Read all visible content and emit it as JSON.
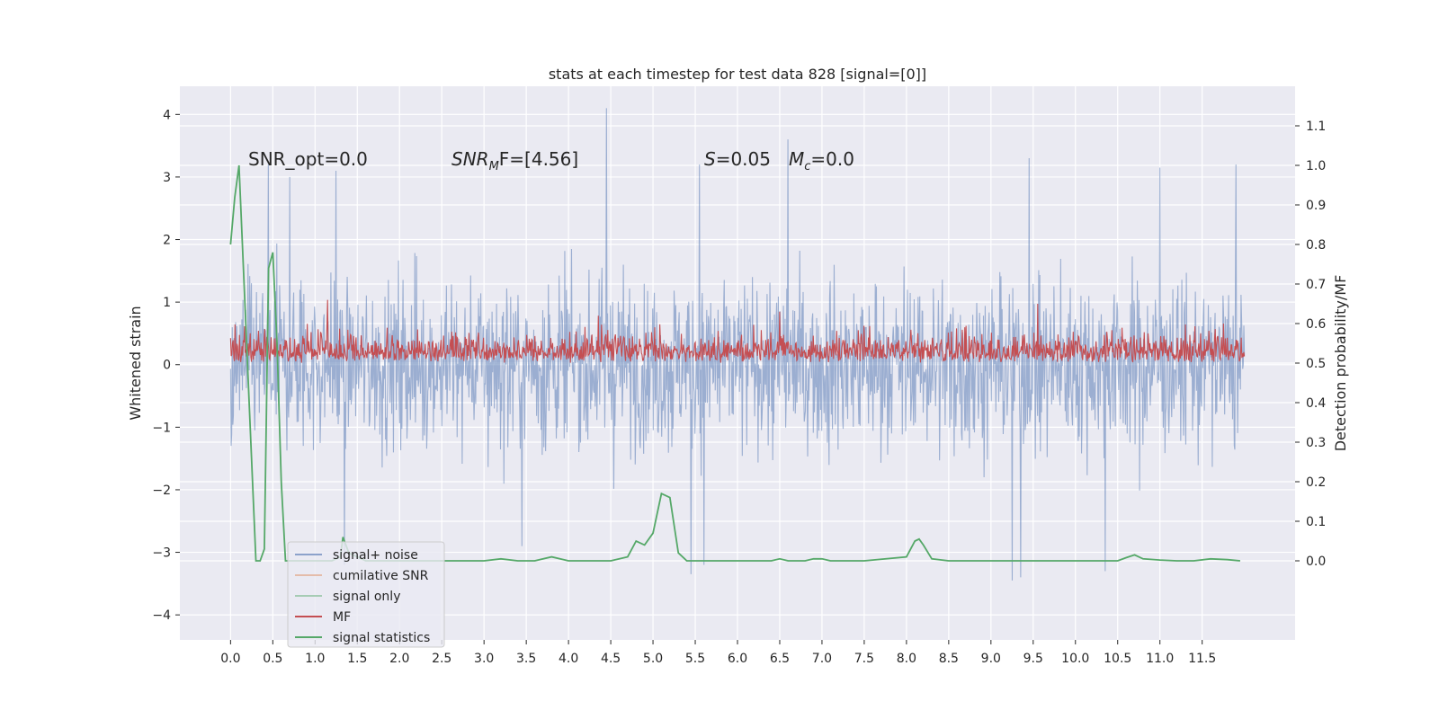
{
  "chart_data": {
    "type": "line",
    "title": "stats at each timestep for test data 828 [signal=[0]]",
    "ylabel": "Whitened strain",
    "ylabel_right": "Detection probability/MF",
    "xlim": [
      -0.6,
      12.6
    ],
    "ylim": [
      -4.4,
      4.45
    ],
    "ylim_right": [
      -0.2,
      1.2
    ],
    "xticks": [
      0.0,
      0.5,
      1.0,
      1.5,
      2.0,
      2.5,
      3.0,
      3.5,
      4.0,
      4.5,
      5.0,
      5.5,
      6.0,
      6.5,
      7.0,
      7.5,
      8.0,
      8.5,
      9.0,
      9.5,
      10.0,
      10.5,
      11.0,
      11.5
    ],
    "xtick_labels": [
      "0.0",
      "0.5",
      "1.0",
      "1.5",
      "2.0",
      "2.5",
      "3.0",
      "3.5",
      "4.0",
      "4.5",
      "5.0",
      "5.5",
      "6.0",
      "6.5",
      "7.0",
      "7.5",
      "8.0",
      "8.5",
      "9.0",
      "9.5",
      "10.0",
      "10.5",
      "11.0",
      "11.5"
    ],
    "yticks": [
      4,
      3,
      2,
      1,
      0,
      -1,
      -2,
      -3,
      -4
    ],
    "ytick_labels": [
      "4",
      "3",
      "2",
      "1",
      "0",
      "−1",
      "−2",
      "−3",
      "−4"
    ],
    "yticks_right": [
      1.1,
      1.0,
      0.9,
      0.8,
      0.7,
      0.6,
      0.5,
      0.4,
      0.3,
      0.2,
      0.1,
      0.0
    ],
    "ytick_right_labels": [
      "1.1",
      "1.0",
      "0.9",
      "0.8",
      "0.7",
      "0.6",
      "0.5",
      "0.4",
      "0.3",
      "0.2",
      "0.1",
      "0.0"
    ],
    "grid": true,
    "legend_position": "lower-left",
    "annotations": {
      "snr_opt": "SNR_opt=0.0",
      "snr_mf_main": "SNR",
      "snr_mf_sub": "M",
      "snr_mf_after": "F=[4.56]",
      "s_var": "S",
      "s_value": "=0.05",
      "mc_var": "M",
      "mc_sub": "c",
      "mc_value": "=0.0"
    },
    "series": [
      {
        "name": "signal+ noise",
        "color": "#4c72b0",
        "axis": "left",
        "style": "dense noise band",
        "x_range": [
          0.0,
          12.0
        ],
        "envelope_upper": 2.0,
        "envelope_lower": -2.0,
        "peaks": [
          {
            "x": 0.45,
            "y": 3.2
          },
          {
            "x": 0.7,
            "y": 3.0
          },
          {
            "x": 1.25,
            "y": 3.1
          },
          {
            "x": 4.45,
            "y": 4.1
          },
          {
            "x": 5.55,
            "y": 3.2
          },
          {
            "x": 6.6,
            "y": 3.6
          },
          {
            "x": 9.25,
            "y": 3.25
          },
          {
            "x": 9.45,
            "y": 3.3
          },
          {
            "x": 11.0,
            "y": 3.15
          },
          {
            "x": 11.9,
            "y": 3.2
          }
        ],
        "troughs": [
          {
            "x": 1.35,
            "y": -3.2
          },
          {
            "x": 3.45,
            "y": -2.9
          },
          {
            "x": 5.45,
            "y": -3.35
          },
          {
            "x": 5.6,
            "y": -3.2
          },
          {
            "x": 9.25,
            "y": -3.45
          },
          {
            "x": 9.35,
            "y": -3.4
          },
          {
            "x": 10.35,
            "y": -3.3
          }
        ]
      },
      {
        "name": "cumilative SNR",
        "color": "#dd8452",
        "axis": "left",
        "x": [],
        "y": []
      },
      {
        "name": "signal only",
        "color": "#55a868",
        "axis": "left",
        "x": [],
        "y": []
      },
      {
        "name": "MF",
        "color": "#c44e52",
        "axis": "right",
        "style": "dense noise band",
        "x_range": [
          0.0,
          12.0
        ],
        "baseline": 0.5,
        "envelope_upper": 0.58,
        "peaks": [
          {
            "x": 1.15,
            "y": 0.66
          },
          {
            "x": 4.35,
            "y": 0.62
          },
          {
            "x": 6.5,
            "y": 0.63
          },
          {
            "x": 9.55,
            "y": 0.65
          },
          {
            "x": 11.75,
            "y": 0.6
          }
        ]
      },
      {
        "name": "signal statistics",
        "color": "#55a868",
        "axis": "right",
        "x": [
          0.0,
          0.05,
          0.1,
          0.2,
          0.3,
          0.35,
          0.4,
          0.45,
          0.5,
          0.55,
          0.6,
          0.65,
          0.8,
          1.0,
          1.2,
          1.3,
          1.33,
          1.4,
          1.6,
          2.0,
          2.5,
          3.0,
          3.2,
          3.4,
          3.6,
          3.8,
          4.0,
          4.5,
          4.7,
          4.8,
          4.9,
          5.0,
          5.1,
          5.2,
          5.3,
          5.4,
          5.5,
          6.0,
          6.4,
          6.5,
          6.6,
          6.8,
          6.9,
          7.0,
          7.1,
          7.5,
          8.0,
          8.1,
          8.15,
          8.2,
          8.3,
          8.5,
          9.0,
          9.5,
          10.0,
          10.5,
          10.6,
          10.7,
          10.8,
          11.0,
          11.2,
          11.4,
          11.6,
          11.8,
          11.95
        ],
        "y": [
          0.8,
          0.92,
          1.0,
          0.5,
          0.0,
          0.0,
          0.03,
          0.74,
          0.78,
          0.55,
          0.2,
          0.0,
          0.0,
          0.0,
          0.0,
          0.01,
          0.06,
          0.02,
          0.0,
          0.0,
          0.0,
          0.0,
          0.005,
          0.0,
          0.0,
          0.01,
          0.0,
          0.0,
          0.01,
          0.05,
          0.04,
          0.07,
          0.17,
          0.16,
          0.02,
          0.0,
          0.0,
          0.0,
          0.0,
          0.005,
          0.0,
          0.0,
          0.005,
          0.005,
          0.0,
          0.0,
          0.01,
          0.05,
          0.055,
          0.04,
          0.005,
          0.0,
          0.0,
          0.0,
          0.0,
          0.0,
          0.008,
          0.015,
          0.005,
          0.002,
          0.0,
          0.0,
          0.005,
          0.003,
          0.0
        ]
      }
    ]
  }
}
